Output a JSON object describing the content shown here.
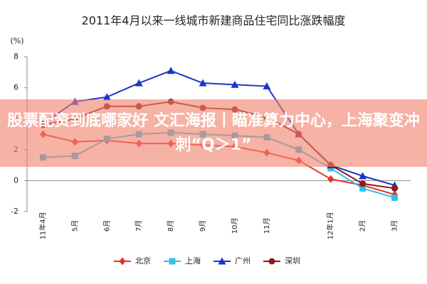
{
  "chart_data": {
    "type": "line",
    "title": "2011年4月以来一线城市新建商品住宅同比涨跌幅度",
    "y_label": "(%)",
    "categories": [
      "11年4月",
      "5月",
      "6月",
      "7月",
      "8月",
      "9月",
      "10月",
      "11月",
      null,
      "12年1月",
      "2月",
      "3月"
    ],
    "series": [
      {
        "name": "北京",
        "color": "#e8322a",
        "marker": "diamond",
        "values": [
          3.0,
          2.5,
          2.6,
          2.4,
          2.4,
          2.3,
          2.2,
          1.8,
          1.3,
          0.1,
          -0.3,
          -0.9
        ]
      },
      {
        "name": "上海",
        "color": "#33c0e8",
        "marker": "square",
        "values": [
          1.5,
          1.6,
          2.7,
          3.0,
          3.1,
          3.0,
          2.9,
          2.8,
          2.0,
          0.8,
          -0.5,
          -1.1
        ]
      },
      {
        "name": "广州",
        "color": "#1c35c8",
        "marker": "triangle",
        "values": [
          3.7,
          5.1,
          5.4,
          6.3,
          7.1,
          6.3,
          6.2,
          6.1,
          3.0,
          1.0,
          0.3,
          -0.3
        ]
      },
      {
        "name": "深圳",
        "color": "#8b1a1a",
        "marker": "circle",
        "values": [
          3.6,
          4.0,
          4.8,
          4.8,
          5.1,
          4.7,
          4.6,
          4.1,
          3.0,
          1.0,
          -0.2,
          -0.5
        ]
      }
    ],
    "ylim": [
      -2,
      8
    ],
    "yticks": [
      -2,
      0,
      2,
      4,
      6,
      8
    ]
  },
  "banner": {
    "text": "股票配资到底哪家好 文汇海报丨瞄准算力中心，上海聚变冲刺“Q＞1”"
  }
}
